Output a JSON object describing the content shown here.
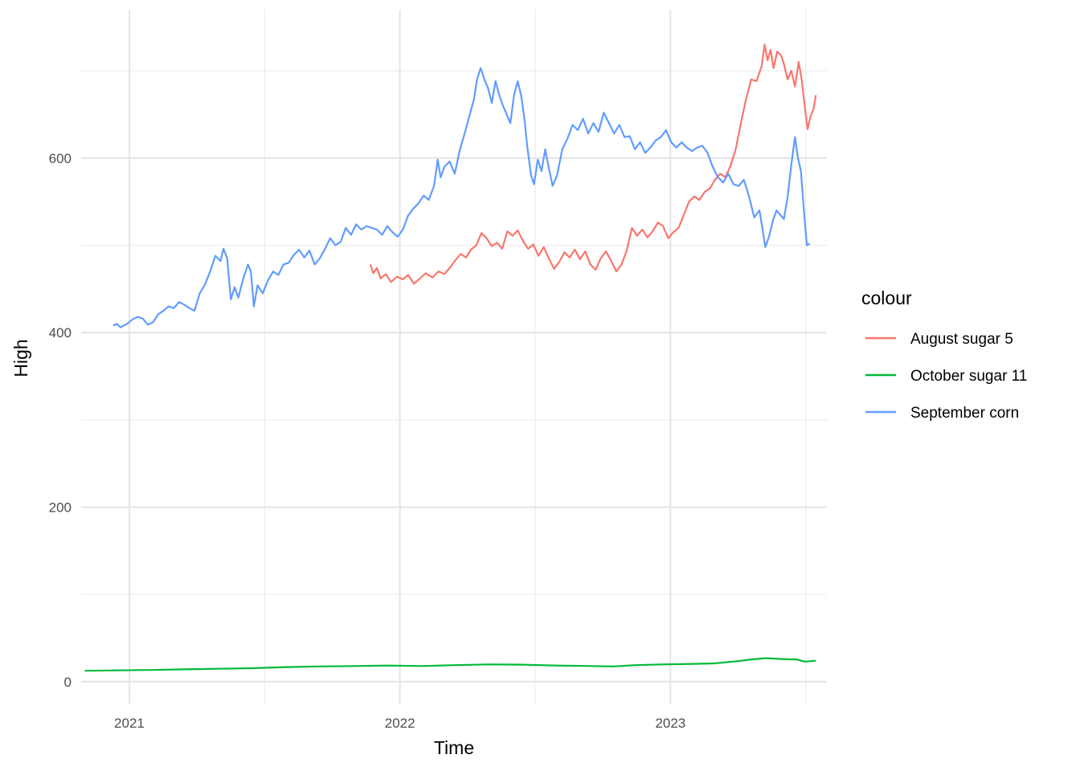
{
  "chart_data": {
    "type": "line",
    "title": "",
    "xlabel": "Time",
    "ylabel": "High",
    "xlim": [
      "2020-10-28",
      "2023-07-31"
    ],
    "ylim": [
      -25,
      770
    ],
    "x_ticks": [
      "2021",
      "2022",
      "2023"
    ],
    "x_tick_dates": [
      "2021-01-01",
      "2022-01-01",
      "2023-01-01"
    ],
    "y_ticks": [
      0,
      200,
      400,
      600
    ],
    "grid": true,
    "legend": {
      "title": "colour",
      "placement": "right"
    },
    "series": [
      {
        "name": "August sugar 5",
        "color": "#F8766D",
        "points": [
          [
            "2021-11-22",
            478
          ],
          [
            "2021-11-26",
            468
          ],
          [
            "2021-12-01",
            474
          ],
          [
            "2021-12-06",
            462
          ],
          [
            "2021-12-13",
            467
          ],
          [
            "2021-12-20",
            458
          ],
          [
            "2021-12-28",
            464
          ],
          [
            "2022-01-05",
            461
          ],
          [
            "2022-01-12",
            466
          ],
          [
            "2022-01-20",
            456
          ],
          [
            "2022-01-28",
            462
          ],
          [
            "2022-02-05",
            468
          ],
          [
            "2022-02-14",
            463
          ],
          [
            "2022-02-22",
            470
          ],
          [
            "2022-03-02",
            467
          ],
          [
            "2022-03-10",
            475
          ],
          [
            "2022-03-17",
            483
          ],
          [
            "2022-03-24",
            490
          ],
          [
            "2022-03-31",
            486
          ],
          [
            "2022-04-07",
            495
          ],
          [
            "2022-04-14",
            500
          ],
          [
            "2022-04-21",
            514
          ],
          [
            "2022-04-28",
            508
          ],
          [
            "2022-05-05",
            499
          ],
          [
            "2022-05-12",
            503
          ],
          [
            "2022-05-19",
            496
          ],
          [
            "2022-05-26",
            516
          ],
          [
            "2022-06-02",
            511
          ],
          [
            "2022-06-09",
            517
          ],
          [
            "2022-06-16",
            505
          ],
          [
            "2022-06-23",
            496
          ],
          [
            "2022-06-30",
            501
          ],
          [
            "2022-07-07",
            488
          ],
          [
            "2022-07-14",
            498
          ],
          [
            "2022-07-21",
            485
          ],
          [
            "2022-07-28",
            473
          ],
          [
            "2022-08-04",
            481
          ],
          [
            "2022-08-11",
            492
          ],
          [
            "2022-08-18",
            486
          ],
          [
            "2022-08-25",
            495
          ],
          [
            "2022-09-01",
            484
          ],
          [
            "2022-09-08",
            493
          ],
          [
            "2022-09-15",
            478
          ],
          [
            "2022-09-22",
            472
          ],
          [
            "2022-09-29",
            485
          ],
          [
            "2022-10-06",
            493
          ],
          [
            "2022-10-13",
            482
          ],
          [
            "2022-10-20",
            470
          ],
          [
            "2022-10-27",
            478
          ],
          [
            "2022-11-03",
            494
          ],
          [
            "2022-11-10",
            520
          ],
          [
            "2022-11-17",
            511
          ],
          [
            "2022-11-24",
            518
          ],
          [
            "2022-12-01",
            509
          ],
          [
            "2022-12-08",
            516
          ],
          [
            "2022-12-15",
            526
          ],
          [
            "2022-12-22",
            522
          ],
          [
            "2022-12-29",
            508
          ],
          [
            "2023-01-05",
            515
          ],
          [
            "2023-01-12",
            520
          ],
          [
            "2023-01-19",
            535
          ],
          [
            "2023-01-26",
            550
          ],
          [
            "2023-02-02",
            556
          ],
          [
            "2023-02-09",
            552
          ],
          [
            "2023-02-16",
            561
          ],
          [
            "2023-02-23",
            565
          ],
          [
            "2023-03-02",
            575
          ],
          [
            "2023-03-09",
            582
          ],
          [
            "2023-03-16",
            578
          ],
          [
            "2023-03-23",
            591
          ],
          [
            "2023-03-30",
            610
          ],
          [
            "2023-04-06",
            640
          ],
          [
            "2023-04-13",
            668
          ],
          [
            "2023-04-20",
            690
          ],
          [
            "2023-04-27",
            688
          ],
          [
            "2023-05-04",
            705
          ],
          [
            "2023-05-08",
            730
          ],
          [
            "2023-05-12",
            712
          ],
          [
            "2023-05-16",
            724
          ],
          [
            "2023-05-20",
            703
          ],
          [
            "2023-05-25",
            722
          ],
          [
            "2023-05-30",
            718
          ],
          [
            "2023-06-03",
            708
          ],
          [
            "2023-06-08",
            690
          ],
          [
            "2023-06-13",
            700
          ],
          [
            "2023-06-18",
            682
          ],
          [
            "2023-06-23",
            710
          ],
          [
            "2023-06-27",
            690
          ],
          [
            "2023-07-01",
            660
          ],
          [
            "2023-07-05",
            633
          ],
          [
            "2023-07-09",
            648
          ],
          [
            "2023-07-13",
            656
          ],
          [
            "2023-07-16",
            672
          ]
        ]
      },
      {
        "name": "October sugar 11",
        "color": "#00BA38",
        "points": [
          [
            "2020-11-02",
            12.5
          ],
          [
            "2020-12-15",
            13.0
          ],
          [
            "2021-02-01",
            13.5
          ],
          [
            "2021-03-15",
            14.2
          ],
          [
            "2021-05-01",
            14.8
          ],
          [
            "2021-06-15",
            15.5
          ],
          [
            "2021-08-01",
            16.8
          ],
          [
            "2021-09-15",
            17.5
          ],
          [
            "2021-11-01",
            18.0
          ],
          [
            "2021-12-15",
            18.5
          ],
          [
            "2022-02-01",
            18.0
          ],
          [
            "2022-03-15",
            19.0
          ],
          [
            "2022-05-01",
            19.8
          ],
          [
            "2022-06-15",
            19.5
          ],
          [
            "2022-08-01",
            18.5
          ],
          [
            "2022-09-15",
            18.0
          ],
          [
            "2022-10-15",
            17.5
          ],
          [
            "2022-11-15",
            19.0
          ],
          [
            "2022-12-20",
            19.8
          ],
          [
            "2023-02-01",
            20.5
          ],
          [
            "2023-03-01",
            21.0
          ],
          [
            "2023-04-01",
            23.5
          ],
          [
            "2023-04-20",
            25.5
          ],
          [
            "2023-05-10",
            27.0
          ],
          [
            "2023-06-01",
            26.0
          ],
          [
            "2023-06-20",
            25.5
          ],
          [
            "2023-07-01",
            23.0
          ],
          [
            "2023-07-16",
            24.0
          ]
        ]
      },
      {
        "name": "September corn",
        "color": "#619CFF",
        "points": [
          [
            "2020-12-10",
            408
          ],
          [
            "2020-12-15",
            410
          ],
          [
            "2020-12-20",
            406
          ],
          [
            "2020-12-29",
            410
          ],
          [
            "2021-01-05",
            415
          ],
          [
            "2021-01-12",
            418
          ],
          [
            "2021-01-19",
            416
          ],
          [
            "2021-01-26",
            409
          ],
          [
            "2021-02-02",
            412
          ],
          [
            "2021-02-09",
            421
          ],
          [
            "2021-02-16",
            425
          ],
          [
            "2021-02-23",
            430
          ],
          [
            "2021-03-02",
            428
          ],
          [
            "2021-03-09",
            435
          ],
          [
            "2021-03-16",
            432
          ],
          [
            "2021-03-23",
            428
          ],
          [
            "2021-03-30",
            425
          ],
          [
            "2021-04-06",
            445
          ],
          [
            "2021-04-13",
            455
          ],
          [
            "2021-04-20",
            470
          ],
          [
            "2021-04-27",
            488
          ],
          [
            "2021-05-04",
            482
          ],
          [
            "2021-05-08",
            496
          ],
          [
            "2021-05-13",
            485
          ],
          [
            "2021-05-18",
            438
          ],
          [
            "2021-05-23",
            452
          ],
          [
            "2021-05-28",
            440
          ],
          [
            "2021-06-03",
            460
          ],
          [
            "2021-06-10",
            478
          ],
          [
            "2021-06-14",
            470
          ],
          [
            "2021-06-18",
            430
          ],
          [
            "2021-06-23",
            454
          ],
          [
            "2021-06-30",
            445
          ],
          [
            "2021-07-07",
            460
          ],
          [
            "2021-07-14",
            470
          ],
          [
            "2021-07-21",
            466
          ],
          [
            "2021-07-28",
            478
          ],
          [
            "2021-08-04",
            480
          ],
          [
            "2021-08-11",
            489
          ],
          [
            "2021-08-18",
            495
          ],
          [
            "2021-08-25",
            486
          ],
          [
            "2021-09-01",
            494
          ],
          [
            "2021-09-08",
            478
          ],
          [
            "2021-09-15",
            485
          ],
          [
            "2021-09-22",
            496
          ],
          [
            "2021-09-29",
            508
          ],
          [
            "2021-10-06",
            500
          ],
          [
            "2021-10-13",
            504
          ],
          [
            "2021-10-20",
            520
          ],
          [
            "2021-10-27",
            512
          ],
          [
            "2021-11-03",
            524
          ],
          [
            "2021-11-10",
            518
          ],
          [
            "2021-11-17",
            522
          ],
          [
            "2021-11-24",
            520
          ],
          [
            "2021-12-01",
            518
          ],
          [
            "2021-12-08",
            512
          ],
          [
            "2021-12-15",
            522
          ],
          [
            "2021-12-22",
            515
          ],
          [
            "2021-12-29",
            510
          ],
          [
            "2022-01-05",
            518
          ],
          [
            "2022-01-12",
            534
          ],
          [
            "2022-01-19",
            542
          ],
          [
            "2022-01-26",
            548
          ],
          [
            "2022-02-02",
            557
          ],
          [
            "2022-02-09",
            552
          ],
          [
            "2022-02-16",
            568
          ],
          [
            "2022-02-21",
            598
          ],
          [
            "2022-02-25",
            578
          ],
          [
            "2022-03-02",
            590
          ],
          [
            "2022-03-09",
            596
          ],
          [
            "2022-03-16",
            582
          ],
          [
            "2022-03-23",
            610
          ],
          [
            "2022-03-30",
            630
          ],
          [
            "2022-04-06",
            652
          ],
          [
            "2022-04-11",
            668
          ],
          [
            "2022-04-15",
            690
          ],
          [
            "2022-04-20",
            703
          ],
          [
            "2022-04-25",
            690
          ],
          [
            "2022-04-30",
            680
          ],
          [
            "2022-05-05",
            663
          ],
          [
            "2022-05-10",
            688
          ],
          [
            "2022-05-15",
            672
          ],
          [
            "2022-05-20",
            660
          ],
          [
            "2022-05-25",
            650
          ],
          [
            "2022-05-30",
            640
          ],
          [
            "2022-06-04",
            672
          ],
          [
            "2022-06-09",
            688
          ],
          [
            "2022-06-14",
            670
          ],
          [
            "2022-06-18",
            645
          ],
          [
            "2022-06-22",
            612
          ],
          [
            "2022-06-27",
            580
          ],
          [
            "2022-07-01",
            570
          ],
          [
            "2022-07-06",
            598
          ],
          [
            "2022-07-11",
            585
          ],
          [
            "2022-07-16",
            610
          ],
          [
            "2022-07-21",
            588
          ],
          [
            "2022-07-26",
            568
          ],
          [
            "2022-08-01",
            580
          ],
          [
            "2022-08-08",
            610
          ],
          [
            "2022-08-15",
            622
          ],
          [
            "2022-08-22",
            638
          ],
          [
            "2022-08-29",
            632
          ],
          [
            "2022-09-05",
            645
          ],
          [
            "2022-09-12",
            628
          ],
          [
            "2022-09-19",
            640
          ],
          [
            "2022-09-26",
            630
          ],
          [
            "2022-10-03",
            652
          ],
          [
            "2022-10-10",
            640
          ],
          [
            "2022-10-17",
            628
          ],
          [
            "2022-10-24",
            638
          ],
          [
            "2022-10-31",
            624
          ],
          [
            "2022-11-07",
            625
          ],
          [
            "2022-11-14",
            610
          ],
          [
            "2022-11-21",
            618
          ],
          [
            "2022-11-28",
            606
          ],
          [
            "2022-12-05",
            612
          ],
          [
            "2022-12-12",
            620
          ],
          [
            "2022-12-19",
            624
          ],
          [
            "2022-12-26",
            632
          ],
          [
            "2023-01-02",
            618
          ],
          [
            "2023-01-09",
            612
          ],
          [
            "2023-01-16",
            618
          ],
          [
            "2023-01-23",
            612
          ],
          [
            "2023-01-30",
            608
          ],
          [
            "2023-02-06",
            612
          ],
          [
            "2023-02-13",
            614
          ],
          [
            "2023-02-20",
            606
          ],
          [
            "2023-02-27",
            590
          ],
          [
            "2023-03-06",
            578
          ],
          [
            "2023-03-13",
            572
          ],
          [
            "2023-03-20",
            582
          ],
          [
            "2023-03-27",
            570
          ],
          [
            "2023-04-03",
            568
          ],
          [
            "2023-04-10",
            575
          ],
          [
            "2023-04-17",
            556
          ],
          [
            "2023-04-24",
            532
          ],
          [
            "2023-05-01",
            540
          ],
          [
            "2023-05-05",
            520
          ],
          [
            "2023-05-09",
            498
          ],
          [
            "2023-05-14",
            510
          ],
          [
            "2023-05-19",
            528
          ],
          [
            "2023-05-24",
            540
          ],
          [
            "2023-05-29",
            535
          ],
          [
            "2023-06-03",
            530
          ],
          [
            "2023-06-08",
            555
          ],
          [
            "2023-06-13",
            592
          ],
          [
            "2023-06-18",
            624
          ],
          [
            "2023-06-22",
            600
          ],
          [
            "2023-06-26",
            585
          ],
          [
            "2023-06-30",
            540
          ],
          [
            "2023-07-04",
            500
          ],
          [
            "2023-07-08",
            502
          ]
        ]
      }
    ]
  }
}
